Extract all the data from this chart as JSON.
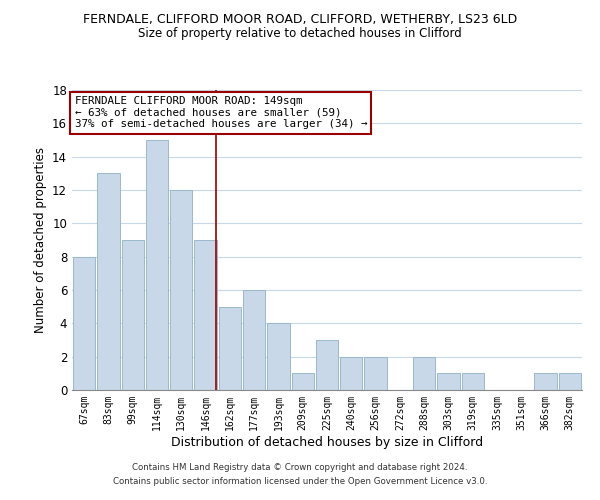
{
  "title": "FERNDALE, CLIFFORD MOOR ROAD, CLIFFORD, WETHERBY, LS23 6LD",
  "subtitle": "Size of property relative to detached houses in Clifford",
  "xlabel": "Distribution of detached houses by size in Clifford",
  "ylabel": "Number of detached properties",
  "bar_color": "#c8d8e8",
  "bar_edge_color": "#9ab8cc",
  "bin_labels": [
    "67sqm",
    "83sqm",
    "99sqm",
    "114sqm",
    "130sqm",
    "146sqm",
    "162sqm",
    "177sqm",
    "193sqm",
    "209sqm",
    "225sqm",
    "240sqm",
    "256sqm",
    "272sqm",
    "288sqm",
    "303sqm",
    "319sqm",
    "335sqm",
    "351sqm",
    "366sqm",
    "382sqm"
  ],
  "bar_heights": [
    8,
    13,
    9,
    15,
    12,
    9,
    5,
    6,
    4,
    1,
    3,
    2,
    2,
    0,
    2,
    1,
    1,
    0,
    0,
    1,
    1
  ],
  "ylim": [
    0,
    18
  ],
  "yticks": [
    0,
    2,
    4,
    6,
    8,
    10,
    12,
    14,
    16,
    18
  ],
  "property_line_x": 5.42,
  "property_line_color": "#990000",
  "annotation_text": "FERNDALE CLIFFORD MOOR ROAD: 149sqm\n← 63% of detached houses are smaller (59)\n37% of semi-detached houses are larger (34) →",
  "annotation_box_color": "#ffffff",
  "annotation_box_edge_color": "#990000",
  "footer_line1": "Contains HM Land Registry data © Crown copyright and database right 2024.",
  "footer_line2": "Contains public sector information licensed under the Open Government Licence v3.0.",
  "background_color": "#ffffff",
  "grid_color": "#c8d8e8"
}
